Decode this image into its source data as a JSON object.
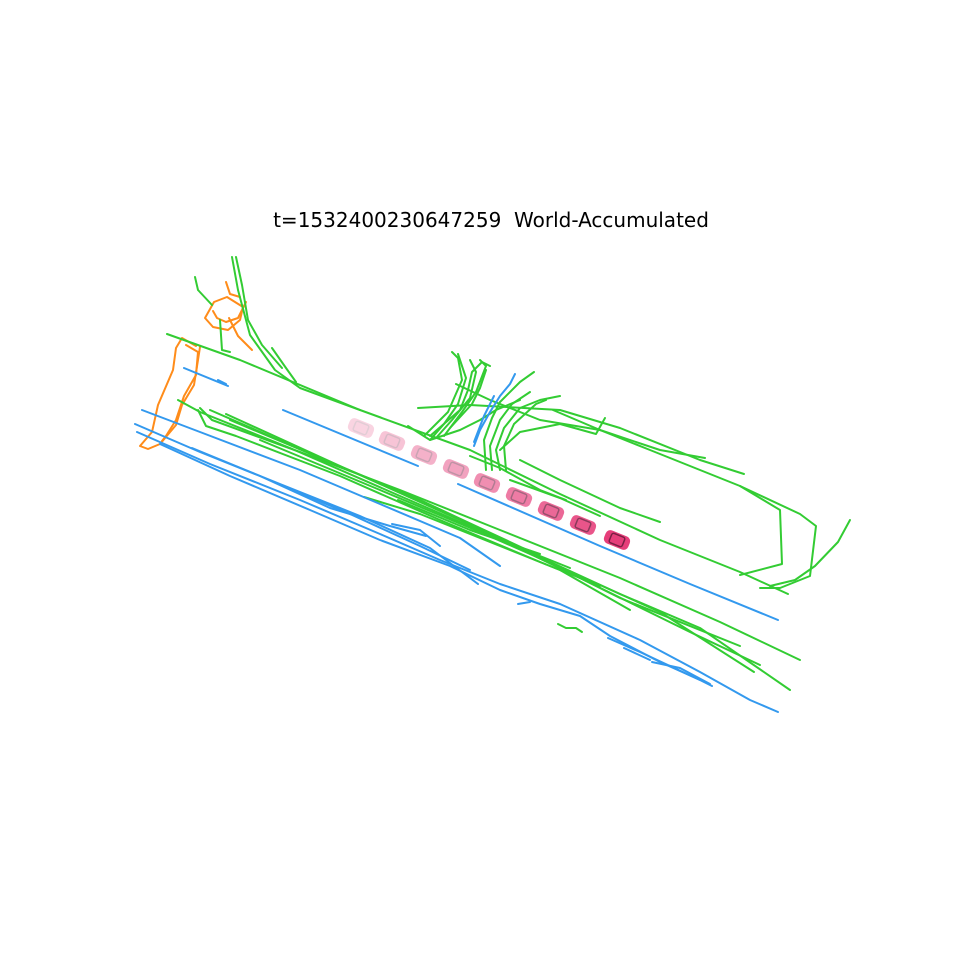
{
  "title": "t=1532400230647259  World-Accumulated",
  "colors": {
    "background": "#ffffff",
    "lane_divider": "#3399ee",
    "road_boundary": "#33cc33",
    "ped_crossing": "#ff8c1a",
    "ego_vehicle": "#e63e7a"
  },
  "ego_trail": {
    "count": 9
  }
}
